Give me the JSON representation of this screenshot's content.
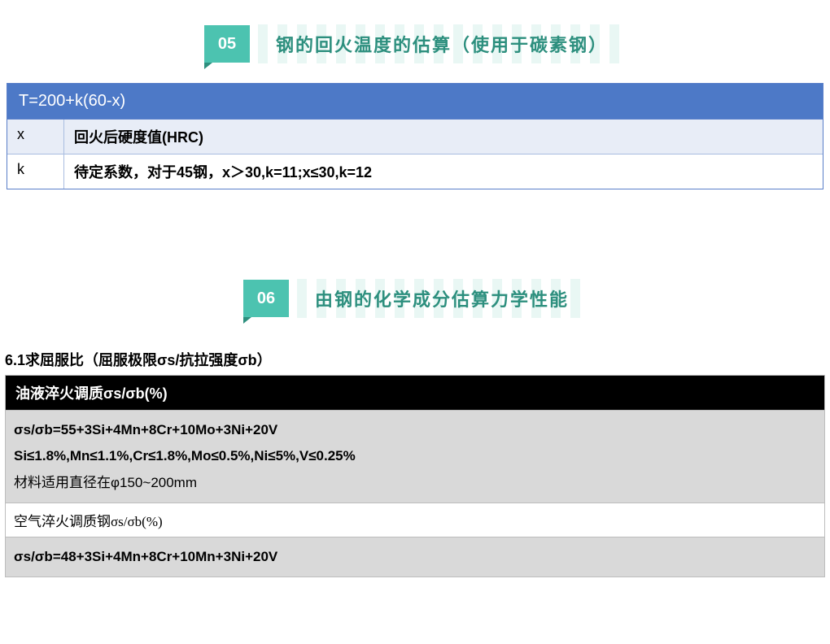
{
  "section1": {
    "badge": "05",
    "title": "钢的回火温度的估算（使用于碳素钢）",
    "formula": "T=200+k(60-x)",
    "rows": [
      {
        "key": "x",
        "val": "回火后硬度值(HRC)"
      },
      {
        "key": "k",
        "val": "待定系数，对于45钢，x＞30,k=11;x≤30,k=12"
      }
    ],
    "colors": {
      "badge_bg": "#4cc3b0",
      "badge_notch": "#2d8f7e",
      "title_color": "#2d8f7e",
      "formula_bg": "#4d79c7",
      "row_alt_bg": "#e8edf7",
      "border": "#5a7fc9"
    }
  },
  "section2": {
    "badge": "06",
    "title": "由钢的化学成分估算力学性能"
  },
  "section3": {
    "heading": "6.1求屈服比（屈服极限σs/抗拉强度σb）",
    "black_header": "油液淬火调质σs/σb(%)",
    "gray_cell": {
      "line1": "σs/σb=55+3Si+4Mn+8Cr+10Mo+3Ni+20V",
      "line2": "Si≤1.8%,Mn≤1.1%,Cr≤1.8%,Mo≤0.5%,Ni≤5%,V≤0.25%",
      "line3": "材料适用直径在φ150~200mm"
    },
    "white_row": "空气淬火调质钢σs/σb(%)",
    "gray_row2": "σs/σb=48+3Si+4Mn+8Cr+10Mn+3Ni+20V",
    "colors": {
      "black_bg": "#000000",
      "gray_bg": "#d9d9d9",
      "border": "#bdbdbd"
    }
  }
}
